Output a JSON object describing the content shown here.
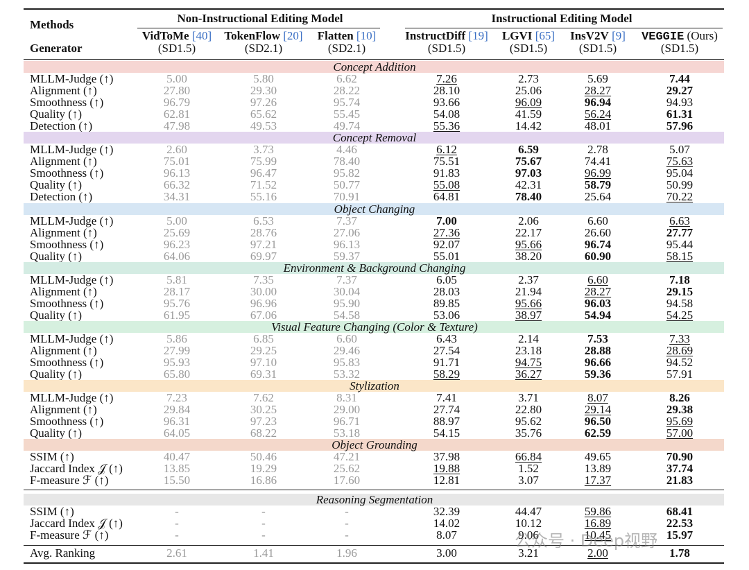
{
  "header": {
    "methods_label": "Methods",
    "generator_label": "Generator",
    "group_noninstr": "Non-Instructional Editing Model",
    "group_instr": "Instructional Editing Model",
    "columns": [
      {
        "name": "VidToMe",
        "ref": "[40]",
        "gen": "(SD1.5)"
      },
      {
        "name": "TokenFlow",
        "ref": "[20]",
        "gen": "(SD2.1)"
      },
      {
        "name": "Flatten",
        "ref": "[10]",
        "gen": "(SD2.1)"
      },
      {
        "name": "InstructDiff",
        "ref": "[19]",
        "gen": "(SD1.5)"
      },
      {
        "name": "LGVI",
        "ref": "[65]",
        "gen": "(SD1.5)"
      },
      {
        "name": "InsV2V",
        "ref": "[9]",
        "gen": "(SD1.5)"
      },
      {
        "name": "VEGGIE",
        "ref": "(Ours)",
        "gen": "(SD1.5)"
      }
    ]
  },
  "sections": [
    {
      "title": "Concept Addition",
      "color": "#f6d6d3",
      "rows": [
        {
          "metric": "MLLM-Judge (↑)",
          "v": [
            "5.00",
            "5.80",
            "6.62",
            "7.26",
            "2.73",
            "5.69",
            "7.44"
          ],
          "fmt": [
            "",
            "",
            "",
            "u",
            "",
            "",
            "b"
          ]
        },
        {
          "metric": "Alignment (↑)",
          "v": [
            "27.80",
            "29.30",
            "28.22",
            "28.10",
            "25.06",
            "28.27",
            "29.27"
          ],
          "fmt": [
            "",
            "",
            "",
            "",
            "",
            "u",
            "b"
          ]
        },
        {
          "metric": "Smoothness (↑)",
          "v": [
            "96.79",
            "97.26",
            "95.74",
            "93.66",
            "96.09",
            "96.94",
            "94.93"
          ],
          "fmt": [
            "",
            "",
            "",
            "",
            "u",
            "b",
            ""
          ]
        },
        {
          "metric": "Quality (↑)",
          "v": [
            "62.81",
            "65.62",
            "55.45",
            "54.08",
            "41.59",
            "56.24",
            "61.31"
          ],
          "fmt": [
            "",
            "",
            "",
            "",
            "",
            "u",
            "b"
          ]
        },
        {
          "metric": "Detection (↑)",
          "v": [
            "47.98",
            "49.53",
            "49.74",
            "55.36",
            "14.42",
            "48.01",
            "57.96"
          ],
          "fmt": [
            "",
            "",
            "",
            "u",
            "",
            "",
            "b"
          ]
        }
      ]
    },
    {
      "title": "Concept Removal",
      "color": "#e3d6ef",
      "rows": [
        {
          "metric": "MLLM-Judge (↑)",
          "v": [
            "2.60",
            "3.73",
            "4.46",
            "6.12",
            "6.59",
            "2.78",
            "5.07"
          ],
          "fmt": [
            "",
            "",
            "",
            "u",
            "b",
            "",
            ""
          ]
        },
        {
          "metric": "Alignment (↑)",
          "v": [
            "75.01",
            "75.99",
            "78.40",
            "75.51",
            "75.67",
            "74.41",
            "75.63"
          ],
          "fmt": [
            "",
            "",
            "",
            "",
            "b",
            "",
            "u"
          ]
        },
        {
          "metric": "Smoothness (↑)",
          "v": [
            "96.13",
            "96.47",
            "95.82",
            "91.83",
            "97.03",
            "96.99",
            "95.04"
          ],
          "fmt": [
            "",
            "",
            "",
            "",
            "b",
            "u",
            ""
          ]
        },
        {
          "metric": "Quality (↑)",
          "v": [
            "66.32",
            "71.52",
            "50.77",
            "55.08",
            "42.31",
            "58.79",
            "50.99"
          ],
          "fmt": [
            "",
            "",
            "",
            "u",
            "",
            "b",
            ""
          ]
        },
        {
          "metric": "Detection (↑)",
          "v": [
            "34.31",
            "55.16",
            "70.91",
            "64.81",
            "78.40",
            "25.64",
            "70.22"
          ],
          "fmt": [
            "",
            "",
            "",
            "",
            "b",
            "",
            "u"
          ]
        }
      ]
    },
    {
      "title": "Object Changing",
      "color": "#d6e6f4",
      "rows": [
        {
          "metric": "MLLM-Judge (↑)",
          "v": [
            "5.00",
            "6.53",
            "7.37",
            "7.00",
            "2.06",
            "6.60",
            "6.63"
          ],
          "fmt": [
            "",
            "",
            "",
            "b",
            "",
            "",
            "u"
          ]
        },
        {
          "metric": "Alignment (↑)",
          "v": [
            "25.69",
            "28.76",
            "27.06",
            "27.36",
            "22.17",
            "26.60",
            "27.77"
          ],
          "fmt": [
            "",
            "",
            "",
            "u",
            "",
            "",
            "b"
          ]
        },
        {
          "metric": "Smoothness (↑)",
          "v": [
            "96.23",
            "97.21",
            "96.13",
            "92.07",
            "95.66",
            "96.74",
            "95.44"
          ],
          "fmt": [
            "",
            "",
            "",
            "",
            "u",
            "b",
            ""
          ]
        },
        {
          "metric": "Quality (↑)",
          "v": [
            "64.06",
            "69.97",
            "59.37",
            "55.01",
            "38.20",
            "60.90",
            "58.15"
          ],
          "fmt": [
            "",
            "",
            "",
            "",
            "",
            "b",
            "u"
          ]
        }
      ]
    },
    {
      "title": "Environment & Background Changing",
      "color": "#d4ece3",
      "rows": [
        {
          "metric": "MLLM-Judge (↑)",
          "v": [
            "5.81",
            "7.35",
            "7.37",
            "6.05",
            "2.37",
            "6.60",
            "7.18"
          ],
          "fmt": [
            "",
            "",
            "",
            "",
            "",
            "u",
            "b"
          ]
        },
        {
          "metric": "Alignment (↑)",
          "v": [
            "28.17",
            "30.00",
            "30.04",
            "28.03",
            "21.94",
            "28.27",
            "29.15"
          ],
          "fmt": [
            "",
            "",
            "",
            "",
            "",
            "u",
            "b"
          ]
        },
        {
          "metric": "Smoothness (↑)",
          "v": [
            "95.76",
            "96.96",
            "95.90",
            "89.85",
            "95.66",
            "96.03",
            "94.58"
          ],
          "fmt": [
            "",
            "",
            "",
            "",
            "u",
            "b",
            ""
          ]
        },
        {
          "metric": "Quality (↑)",
          "v": [
            "61.95",
            "67.06",
            "54.58",
            "53.06",
            "38.97",
            "54.94",
            "54.25"
          ],
          "fmt": [
            "",
            "",
            "",
            "",
            "u",
            "b",
            "u"
          ]
        }
      ]
    },
    {
      "title": "Visual Feature Changing (Color & Texture)",
      "color": "#d6f0df",
      "rows": [
        {
          "metric": "MLLM-Judge (↑)",
          "v": [
            "5.86",
            "6.85",
            "6.60",
            "6.43",
            "2.14",
            "7.53",
            "7.33"
          ],
          "fmt": [
            "",
            "",
            "",
            "",
            "",
            "b",
            "u"
          ]
        },
        {
          "metric": "Alignment (↑)",
          "v": [
            "27.99",
            "29.25",
            "29.46",
            "27.54",
            "23.18",
            "28.88",
            "28.69"
          ],
          "fmt": [
            "",
            "",
            "",
            "",
            "",
            "b",
            "u"
          ]
        },
        {
          "metric": "Smoothness (↑)",
          "v": [
            "95.93",
            "97.10",
            "95.83",
            "91.71",
            "94.75",
            "96.66",
            "94.52"
          ],
          "fmt": [
            "",
            "",
            "",
            "",
            "u",
            "b",
            ""
          ]
        },
        {
          "metric": "Quality (↑)",
          "v": [
            "65.80",
            "69.31",
            "53.32",
            "58.29",
            "36.27",
            "59.36",
            "57.91"
          ],
          "fmt": [
            "",
            "",
            "",
            "u",
            "u",
            "b",
            ""
          ]
        }
      ]
    },
    {
      "title": "Stylization",
      "color": "#fbe6c8",
      "rows": [
        {
          "metric": "MLLM-Judge (↑)",
          "v": [
            "7.23",
            "7.62",
            "8.31",
            "7.41",
            "3.71",
            "8.07",
            "8.26"
          ],
          "fmt": [
            "",
            "",
            "",
            "",
            "",
            "u",
            "b"
          ]
        },
        {
          "metric": "Alignment (↑)",
          "v": [
            "29.84",
            "30.25",
            "29.00",
            "27.74",
            "22.80",
            "29.14",
            "29.38"
          ],
          "fmt": [
            "",
            "",
            "",
            "",
            "",
            "u",
            "b"
          ]
        },
        {
          "metric": "Smoothness (↑)",
          "v": [
            "96.31",
            "97.23",
            "96.71",
            "88.97",
            "95.62",
            "96.50",
            "95.69"
          ],
          "fmt": [
            "",
            "",
            "",
            "",
            "",
            "b",
            "u"
          ]
        },
        {
          "metric": "Quality (↑)",
          "v": [
            "64.05",
            "68.22",
            "53.18",
            "54.15",
            "35.76",
            "62.59",
            "57.00"
          ],
          "fmt": [
            "",
            "",
            "",
            "",
            "",
            "b",
            "u"
          ]
        }
      ]
    },
    {
      "title": "Object Grounding",
      "color": "#f4d8cb",
      "rows": [
        {
          "metric": "SSIM (↑)",
          "v": [
            "40.47",
            "50.46",
            "47.21",
            "37.98",
            "66.84",
            "49.65",
            "70.90"
          ],
          "fmt": [
            "",
            "",
            "",
            "",
            "u",
            "",
            "b"
          ]
        },
        {
          "metric": "Jaccard Index 𝒥 (↑)",
          "v": [
            "13.85",
            "19.29",
            "25.62",
            "19.88",
            "1.52",
            "13.89",
            "37.74"
          ],
          "fmt": [
            "",
            "",
            "",
            "u",
            "",
            "",
            "b"
          ]
        },
        {
          "metric": "F-measure ℱ (↑)",
          "v": [
            "15.50",
            "16.86",
            "17.60",
            "12.81",
            "3.07",
            "17.37",
            "21.83"
          ],
          "fmt": [
            "",
            "",
            "",
            "",
            "",
            "u",
            "b"
          ]
        }
      ]
    },
    {
      "title": "Reasoning Segmentation",
      "color": "#e7e7e7",
      "rows": [
        {
          "metric": "SSIM (↑)",
          "v": [
            "-",
            "-",
            "-",
            "32.39",
            "44.47",
            "59.86",
            "68.41"
          ],
          "fmt": [
            "",
            "",
            "",
            "",
            "",
            "u",
            "b"
          ]
        },
        {
          "metric": "Jaccard Index 𝒥 (↑)",
          "v": [
            "-",
            "-",
            "-",
            "14.02",
            "10.12",
            "16.89",
            "22.53"
          ],
          "fmt": [
            "",
            "",
            "",
            "",
            "",
            "u",
            "b"
          ]
        },
        {
          "metric": "F-measure ℱ (↑)",
          "v": [
            "-",
            "-",
            "-",
            "8.07",
            "9.06",
            "10.45",
            "15.97"
          ],
          "fmt": [
            "",
            "",
            "",
            "",
            "",
            "u",
            "b"
          ]
        }
      ]
    }
  ],
  "avg_row": {
    "metric": "Avg. Ranking",
    "v": [
      "2.61",
      "1.41",
      "1.96",
      "3.00",
      "3.21",
      "2.00",
      "1.78"
    ],
    "fmt": [
      "",
      "",
      "",
      "",
      "",
      "u",
      "b"
    ]
  },
  "watermark": "公众号 · Deep视野"
}
